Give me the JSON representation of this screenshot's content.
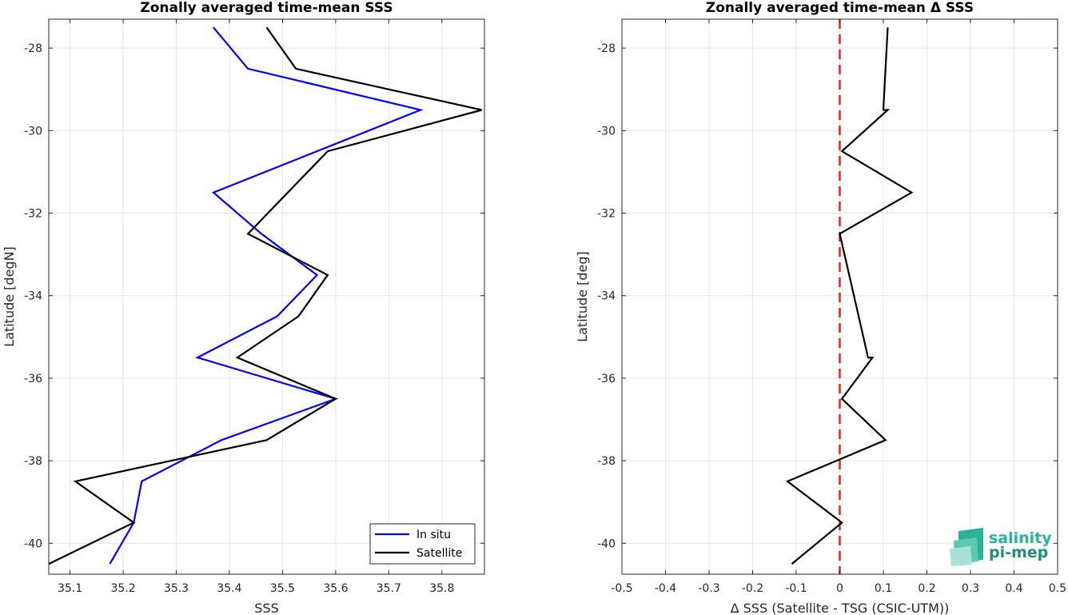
{
  "chart_data": [
    {
      "type": "line",
      "title": "Zonally averaged time-mean SSS",
      "xlabel": "SSS",
      "ylabel": "Latitude [degN]",
      "xlim": [
        35.06,
        35.88
      ],
      "ylim": [
        -40.75,
        -27.3
      ],
      "xticks": [
        "35.1",
        "35.2",
        "35.3",
        "35.4",
        "35.5",
        "35.6",
        "35.7",
        "35.8"
      ],
      "yticks": [
        "-28",
        "-30",
        "-32",
        "-34",
        "-36",
        "-38",
        "-40"
      ],
      "grid": true,
      "legend_position": "bottom-right",
      "series": [
        {
          "name": "In situ",
          "color": "#0000ff",
          "x": [
            35.37,
            35.435,
            35.76,
            35.37,
            35.46,
            35.565,
            35.49,
            35.34,
            35.6,
            35.385,
            35.235,
            35.22,
            35.175
          ],
          "y": [
            -27.5,
            -28.5,
            -29.5,
            -31.5,
            -32.5,
            -33.5,
            -34.5,
            -35.5,
            -36.5,
            -37.5,
            -38.5,
            -39.5,
            -40.5
          ]
        },
        {
          "name": "Satellite",
          "color": "#000000",
          "x": [
            35.47,
            35.525,
            35.875,
            35.585,
            35.435,
            35.585,
            35.53,
            35.415,
            35.6,
            35.47,
            35.11,
            35.22,
            35.06
          ],
          "y": [
            -27.5,
            -28.5,
            -29.5,
            -30.5,
            -32.5,
            -33.5,
            -34.5,
            -35.5,
            -36.5,
            -37.5,
            -38.5,
            -39.5,
            -40.5
          ]
        }
      ]
    },
    {
      "type": "line",
      "title": "Zonally averaged time-mean Δ SSS",
      "xlabel": "Δ SSS (Satellite - TSG (CSIC-UTM))",
      "ylabel": "Latitude [deg]",
      "xlim": [
        -0.5,
        0.5
      ],
      "ylim": [
        -40.75,
        -27.3
      ],
      "xticks": [
        "-0.5",
        "-0.4",
        "-0.3",
        "-0.2",
        "-0.1",
        "0",
        "0.1",
        "0.2",
        "0.3",
        "0.4",
        "0.5"
      ],
      "yticks": [
        "-28",
        "-30",
        "-32",
        "-34",
        "-36",
        "-38",
        "-40"
      ],
      "grid": true,
      "reference_line": {
        "x": 0,
        "color": "#e8201f",
        "style": "dashed"
      },
      "series": [
        {
          "color": "#000000",
          "x": [
            0.11,
            0.1,
            0.11,
            0.005,
            0.165,
            0.0,
            0.065,
            0.075,
            0.005,
            0.105,
            -0.12,
            0.005,
            -0.11
          ],
          "y": [
            -27.5,
            -29.5,
            -29.5,
            -30.5,
            -31.5,
            -32.5,
            -35.5,
            -35.5,
            -36.5,
            -37.5,
            -38.5,
            -39.5,
            -40.5
          ]
        }
      ]
    }
  ],
  "logo": {
    "line1": "salinity",
    "line2": "pi-mep"
  }
}
